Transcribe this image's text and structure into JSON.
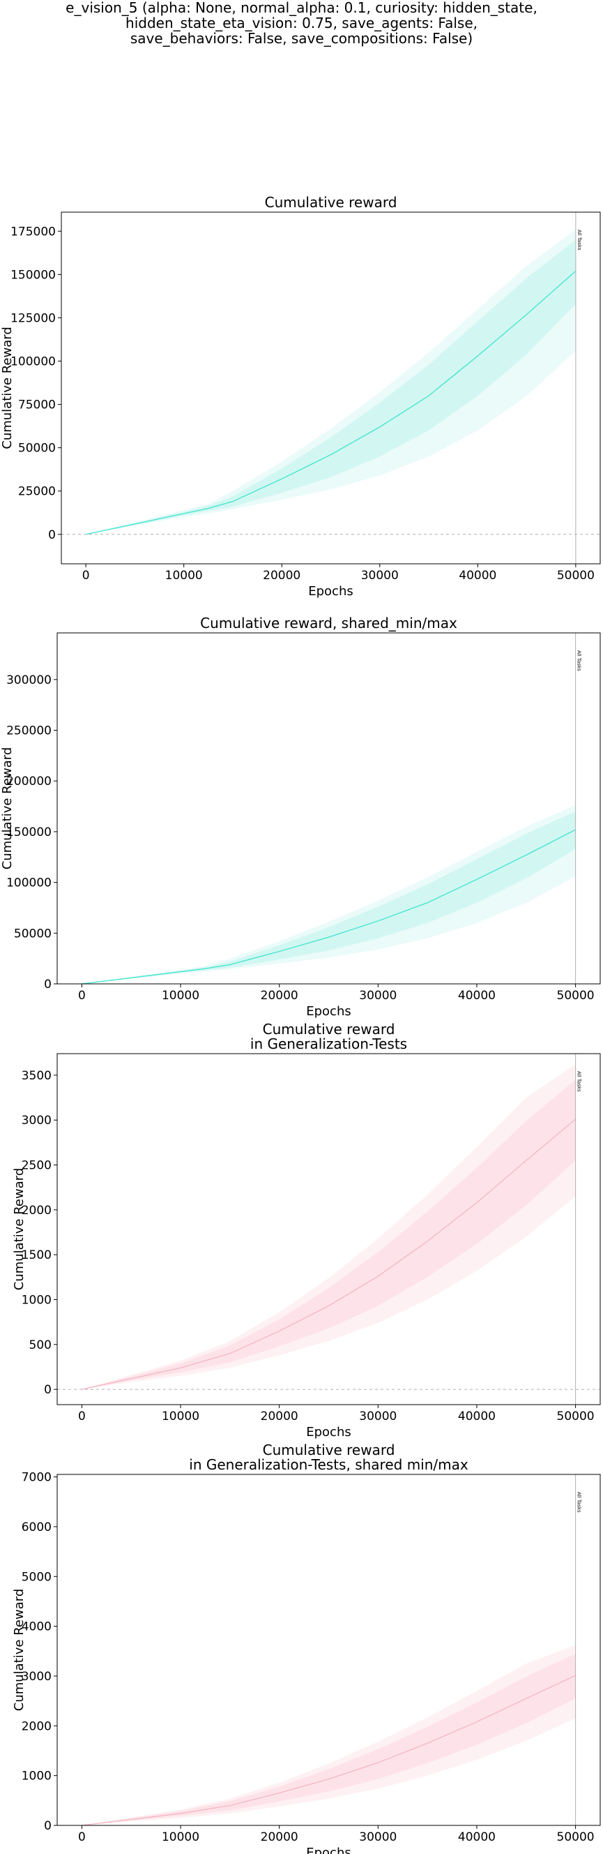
{
  "suptitle_lines": [
    "e_vision_5 (alpha: None, normal_alpha: 0.1, curiosity: hidden_state,",
    "hidden_state_eta_vision: 0.75, save_agents: False,",
    "save_behaviors: False, save_compositions: False)"
  ],
  "colors": {
    "cyan_line": "#48e5cf",
    "cyan_inner": "#d2f7f2",
    "cyan_outer": "#eafbf9",
    "pink_line": "#f4b8c6",
    "pink_inner": "#fde3e9",
    "pink_outer": "#fef1f4",
    "zero_line": "#b0b0b0",
    "marker_line": "#b0b0b0"
  },
  "chart_data": [
    {
      "type": "line",
      "title_lines": [
        "Cumulative reward"
      ],
      "xlabel": "Epochs",
      "ylabel": "Cumulative Reward",
      "xlim": [
        -2500,
        52500
      ],
      "ylim": [
        -17000,
        186000
      ],
      "xticks": [
        0,
        10000,
        20000,
        30000,
        40000,
        50000
      ],
      "yticks": [
        0,
        25000,
        50000,
        75000,
        100000,
        125000,
        150000,
        175000
      ],
      "color": "cyan",
      "zero_line": true,
      "marker": {
        "x": 50000,
        "label": "All Tasks"
      },
      "x": [
        0,
        5000,
        10000,
        12500,
        15000,
        20000,
        25000,
        30000,
        35000,
        40000,
        45000,
        50000
      ],
      "mean": [
        0,
        6000,
        12000,
        15000,
        19000,
        32000,
        46000,
        62000,
        80000,
        103000,
        127000,
        152000
      ],
      "inner_low": [
        0,
        5500,
        11000,
        13500,
        16000,
        24000,
        33000,
        45000,
        60000,
        80000,
        104000,
        133000
      ],
      "inner_high": [
        0,
        6500,
        13000,
        16500,
        22000,
        38000,
        56000,
        76000,
        98000,
        123000,
        148000,
        170000
      ],
      "outer_low": [
        0,
        5000,
        10000,
        12000,
        14500,
        20000,
        26000,
        34000,
        45000,
        60000,
        80000,
        106000
      ],
      "outer_high": [
        0,
        7000,
        14000,
        17500,
        25000,
        42000,
        61000,
        82000,
        105000,
        130000,
        155000,
        176000
      ]
    },
    {
      "type": "line",
      "title_lines": [
        "Cumulative reward, shared_min/max"
      ],
      "xlabel": "Epochs",
      "ylabel": "Cumulative Reward",
      "xlim": [
        -2500,
        52500
      ],
      "ylim": [
        0,
        346000
      ],
      "xticks": [
        0,
        10000,
        20000,
        30000,
        40000,
        50000
      ],
      "yticks": [
        0,
        50000,
        100000,
        150000,
        200000,
        250000,
        300000
      ],
      "color": "cyan",
      "zero_line": false,
      "marker": {
        "x": 50000,
        "label": "All Tasks"
      },
      "x": [
        0,
        5000,
        10000,
        12500,
        15000,
        20000,
        25000,
        30000,
        35000,
        40000,
        45000,
        50000
      ],
      "mean": [
        0,
        6000,
        12000,
        15000,
        19000,
        32000,
        46000,
        62000,
        80000,
        103000,
        127000,
        152000
      ],
      "inner_low": [
        0,
        5500,
        11000,
        13500,
        16000,
        24000,
        33000,
        45000,
        60000,
        80000,
        104000,
        133000
      ],
      "inner_high": [
        0,
        6500,
        13000,
        16500,
        22000,
        38000,
        56000,
        76000,
        98000,
        123000,
        148000,
        170000
      ],
      "outer_low": [
        0,
        5000,
        10000,
        12000,
        14500,
        20000,
        26000,
        34000,
        45000,
        60000,
        80000,
        106000
      ],
      "outer_high": [
        0,
        7000,
        14000,
        17500,
        25000,
        42000,
        61000,
        82000,
        105000,
        130000,
        155000,
        176000
      ]
    },
    {
      "type": "line",
      "title_lines": [
        "Cumulative reward",
        "in Generalization-Tests"
      ],
      "xlabel": "Epochs",
      "ylabel": "Cumulative Reward",
      "xlim": [
        -2500,
        52500
      ],
      "ylim": [
        -170,
        3740
      ],
      "xticks": [
        0,
        10000,
        20000,
        30000,
        40000,
        50000
      ],
      "yticks": [
        0,
        500,
        1000,
        1500,
        2000,
        2500,
        3000,
        3500
      ],
      "color": "pink",
      "zero_line": true,
      "marker": {
        "x": 50000,
        "label": "All Tasks"
      },
      "x": [
        0,
        5000,
        10000,
        15000,
        20000,
        25000,
        30000,
        35000,
        40000,
        45000,
        50000
      ],
      "mean": [
        0,
        120,
        240,
        400,
        650,
        930,
        1260,
        1650,
        2080,
        2550,
        3010
      ],
      "inner_low": [
        0,
        100,
        190,
        300,
        480,
        680,
        930,
        1250,
        1620,
        2050,
        2550
      ],
      "inner_high": [
        0,
        145,
        290,
        490,
        780,
        1130,
        1530,
        1980,
        2470,
        2990,
        3450
      ],
      "outer_low": [
        0,
        80,
        150,
        240,
        380,
        540,
        740,
        1000,
        1320,
        1700,
        2150
      ],
      "outer_high": [
        0,
        160,
        320,
        540,
        860,
        1240,
        1680,
        2170,
        2700,
        3250,
        3620
      ]
    },
    {
      "type": "line",
      "title_lines": [
        "Cumulative reward",
        "in Generalization-Tests, shared min/max"
      ],
      "xlabel": "Epochs",
      "ylabel": "Cumulative Reward",
      "xlim": [
        -2500,
        52500
      ],
      "ylim": [
        0,
        7050
      ],
      "xticks": [
        0,
        10000,
        20000,
        30000,
        40000,
        50000
      ],
      "yticks": [
        0,
        1000,
        2000,
        3000,
        4000,
        5000,
        6000,
        7000
      ],
      "color": "pink",
      "zero_line": false,
      "marker": {
        "x": 50000,
        "label": "All Tasks"
      },
      "x": [
        0,
        5000,
        10000,
        15000,
        20000,
        25000,
        30000,
        35000,
        40000,
        45000,
        50000
      ],
      "mean": [
        0,
        120,
        240,
        400,
        650,
        930,
        1260,
        1650,
        2080,
        2550,
        3010
      ],
      "inner_low": [
        0,
        100,
        190,
        300,
        480,
        680,
        930,
        1250,
        1620,
        2050,
        2550
      ],
      "inner_high": [
        0,
        145,
        290,
        490,
        780,
        1130,
        1530,
        1980,
        2470,
        2990,
        3450
      ],
      "outer_low": [
        0,
        80,
        150,
        240,
        380,
        540,
        740,
        1000,
        1320,
        1700,
        2150
      ],
      "outer_high": [
        0,
        160,
        320,
        540,
        860,
        1240,
        1680,
        2170,
        2700,
        3250,
        3620
      ]
    }
  ]
}
